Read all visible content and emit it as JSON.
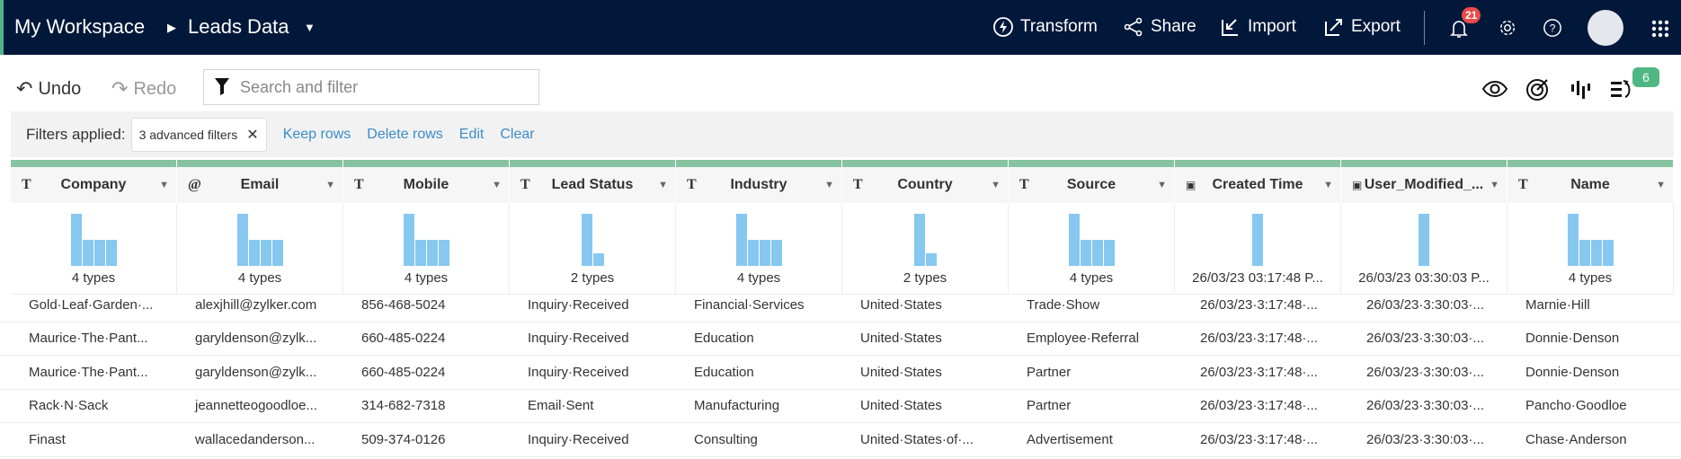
{
  "header": {
    "workspace": "My Workspace",
    "dataset": "Leads Data",
    "actions": [
      "Transform",
      "Share",
      "Import",
      "Export"
    ],
    "notification_count": "21"
  },
  "toolbar": {
    "undo": "Undo",
    "redo": "Redo",
    "search_placeholder": "Search and filter",
    "badge": "6"
  },
  "filters": {
    "label": "Filters applied:",
    "chip": "3 advanced filters",
    "links": [
      "Keep rows",
      "Delete rows",
      "Edit",
      "Clear"
    ]
  },
  "columns": [
    {
      "type": "T",
      "name": "Company",
      "summary": "4 types",
      "bars": [
        3,
        1.5,
        1.5,
        1.5
      ]
    },
    {
      "type": "@",
      "name": "Email",
      "summary": "4 types",
      "bars": [
        3,
        1.5,
        1.5,
        1.5
      ]
    },
    {
      "type": "T",
      "name": "Mobile",
      "summary": "4 types",
      "bars": [
        3,
        1.5,
        1.5,
        1.5
      ]
    },
    {
      "type": "T",
      "name": "Lead Status",
      "summary": "2 types",
      "bars": [
        4,
        1
      ]
    },
    {
      "type": "T",
      "name": "Industry",
      "summary": "4 types",
      "bars": [
        3,
        1.5,
        1.5,
        1.5
      ]
    },
    {
      "type": "T",
      "name": "Country",
      "summary": "2 types",
      "bars": [
        4,
        1
      ]
    },
    {
      "type": "T",
      "name": "Source",
      "summary": "4 types",
      "bars": [
        3,
        1.5,
        1.5,
        1.5
      ]
    },
    {
      "type": "date",
      "name": "Created Time",
      "summary": "26/03/23 03:17:48 P...",
      "bars": [
        1
      ]
    },
    {
      "type": "date",
      "name": "User_Modified_...",
      "summary": "26/03/23 03:30:03 P...",
      "bars": [
        1
      ]
    },
    {
      "type": "T",
      "name": "Name",
      "summary": "4 types",
      "bars": [
        3,
        1.5,
        1.5,
        1.5
      ]
    }
  ],
  "rows": [
    [
      "Gold·Leaf·Garden·...",
      "alexjhill@zylker.com",
      "856-468-5024",
      "Inquiry·Received",
      "Financial·Services",
      "United·States",
      "Trade·Show",
      "26/03/23·3:17:48·...",
      "26/03/23·3:30:03·...",
      "Marnie·Hill"
    ],
    [
      "Maurice·The·Pant...",
      "garyldenson@zylk...",
      "660-485-0224",
      "Inquiry·Received",
      "Education",
      "United·States",
      "Employee·Referral",
      "26/03/23·3:17:48·...",
      "26/03/23·3:30:03·...",
      "Donnie·Denson"
    ],
    [
      "Maurice·The·Pant...",
      "garyldenson@zylk...",
      "660-485-0224",
      "Inquiry·Received",
      "Education",
      "United·States",
      "Partner",
      "26/03/23·3:17:48·...",
      "26/03/23·3:30:03·...",
      "Donnie·Denson"
    ],
    [
      "Rack·N·Sack",
      "jeannetteogoodloe...",
      "314-682-7318",
      "Email·Sent",
      "Manufacturing",
      "United·States",
      "Partner",
      "26/03/23·3:17:48·...",
      "26/03/23·3:30:03·...",
      "Pancho·Goodloe"
    ],
    [
      "Finast",
      "wallacedanderson...",
      "509-374-0126",
      "Inquiry·Received",
      "Consulting",
      "United·States·of·...",
      "Advertisement",
      "26/03/23·3:17:48·...",
      "26/03/23·3:30:03·...",
      "Chase·Anderson"
    ]
  ]
}
